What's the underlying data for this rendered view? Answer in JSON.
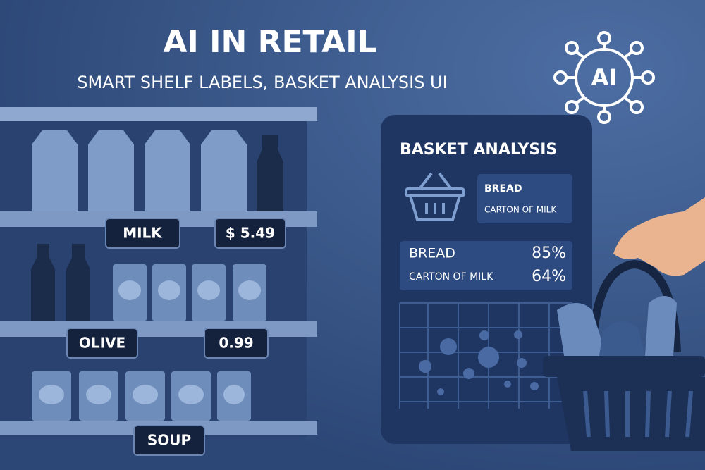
{
  "header": {
    "title": "AI IN RETAIL",
    "subtitle": "SMART SHELF LABELS, BASKET ANALYSIS UI",
    "icon_label": "AI"
  },
  "shelf_labels": [
    "MILK",
    "$ 5.49",
    "OLIVE",
    "0.99",
    "SOUP"
  ],
  "panel": {
    "title": "BASKET ANALYSIS",
    "basket_items": [
      "BREAD",
      "CARTON OF MILK"
    ],
    "analysis": [
      {
        "item": "BREAD",
        "score": "85%"
      },
      {
        "item": "CARTON OF MILK",
        "score": "64%"
      }
    ]
  }
}
